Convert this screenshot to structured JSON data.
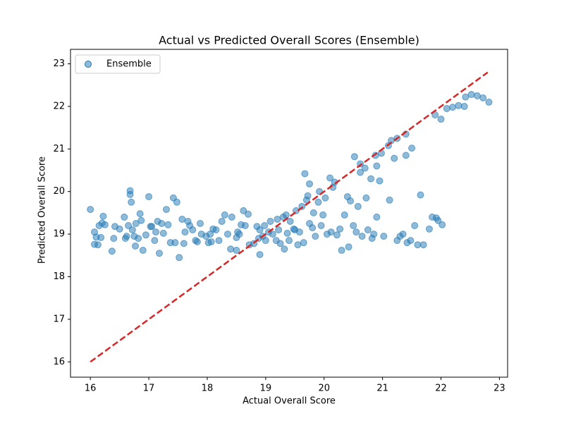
{
  "chart_data": {
    "type": "scatter",
    "title": "Actual vs Predicted Overall Scores (Ensemble)",
    "x_label": "Actual Overall Score",
    "y_label": "Predicted Overall Score",
    "x": [
      16.0,
      16.07,
      16.07,
      16.1,
      16.13,
      16.15,
      16.18,
      16.2,
      16.22,
      16.25,
      16.37,
      16.4,
      16.42,
      16.5,
      16.58,
      16.6,
      16.62,
      16.65,
      16.68,
      16.68,
      16.7,
      16.72,
      16.75,
      16.77,
      16.78,
      16.82,
      16.85,
      16.87,
      16.9,
      16.95,
      17.0,
      17.03,
      17.05,
      17.1,
      17.12,
      17.15,
      17.18,
      17.22,
      17.25,
      17.3,
      17.33,
      17.37,
      17.42,
      17.45,
      17.48,
      17.52,
      17.57,
      17.6,
      17.62,
      17.67,
      17.7,
      17.75,
      17.8,
      17.83,
      17.88,
      17.9,
      17.98,
      18.02,
      18.05,
      18.07,
      18.1,
      18.15,
      18.2,
      18.25,
      18.3,
      18.35,
      18.4,
      18.42,
      18.5,
      18.5,
      18.52,
      18.55,
      18.58,
      18.62,
      18.65,
      18.7,
      18.72,
      18.8,
      18.85,
      18.88,
      18.9,
      18.9,
      18.95,
      18.98,
      19.0,
      19.05,
      19.08,
      19.12,
      19.18,
      19.2,
      19.22,
      19.25,
      19.3,
      19.32,
      19.35,
      19.37,
      19.4,
      19.42,
      19.48,
      19.5,
      19.52,
      19.55,
      19.58,
      19.62,
      19.65,
      19.67,
      19.7,
      19.72,
      19.75,
      19.75,
      19.8,
      19.82,
      19.85,
      19.9,
      19.92,
      19.95,
      19.98,
      20.02,
      20.05,
      20.1,
      20.12,
      20.15,
      20.18,
      20.22,
      20.27,
      20.3,
      20.35,
      20.4,
      20.42,
      20.45,
      20.5,
      20.52,
      20.55,
      20.58,
      20.62,
      20.62,
      20.65,
      20.7,
      20.72,
      20.75,
      20.8,
      20.82,
      20.85,
      20.88,
      20.9,
      20.9,
      20.95,
      20.98,
      21.02,
      21.1,
      21.12,
      21.15,
      21.2,
      21.25,
      21.25,
      21.3,
      21.35,
      21.4,
      21.4,
      21.42,
      21.48,
      21.5,
      21.55,
      21.6,
      21.65,
      21.7,
      21.8,
      21.85,
      21.9,
      21.92,
      21.95,
      22.0,
      22.02,
      22.1,
      22.2,
      22.3,
      22.4,
      22.42,
      22.52,
      22.62,
      22.72,
      22.82
    ],
    "series": [
      {
        "name": "Ensemble",
        "color": "#1f77b4",
        "values": [
          19.58,
          18.76,
          19.05,
          18.93,
          18.75,
          19.2,
          18.92,
          19.26,
          19.42,
          19.22,
          18.6,
          18.9,
          19.18,
          19.12,
          19.4,
          18.9,
          18.95,
          19.2,
          20.02,
          19.93,
          19.75,
          19.1,
          18.95,
          18.72,
          19.25,
          18.9,
          19.48,
          19.32,
          18.62,
          18.98,
          19.88,
          19.18,
          19.18,
          18.85,
          19.05,
          19.3,
          18.55,
          19.25,
          19.02,
          19.58,
          19.22,
          18.8,
          19.85,
          18.8,
          19.75,
          18.45,
          19.35,
          18.78,
          19.05,
          19.3,
          19.2,
          19.1,
          18.85,
          18.82,
          19.25,
          19.0,
          18.95,
          18.8,
          19.0,
          18.82,
          19.12,
          19.1,
          18.85,
          19.3,
          19.45,
          19.0,
          18.65,
          19.4,
          18.62,
          18.92,
          19.05,
          19.0,
          19.22,
          19.55,
          19.2,
          19.47,
          18.75,
          18.78,
          19.18,
          18.9,
          18.52,
          19.1,
          18.95,
          19.2,
          18.85,
          19.05,
          19.3,
          19.0,
          18.85,
          19.35,
          19.1,
          18.78,
          19.4,
          18.65,
          19.45,
          19.02,
          18.85,
          19.3,
          19.12,
          19.1,
          19.55,
          18.75,
          19.05,
          19.65,
          18.8,
          20.42,
          19.8,
          19.9,
          20.18,
          19.25,
          19.15,
          19.5,
          18.95,
          19.75,
          20.0,
          19.2,
          19.45,
          19.85,
          19.0,
          20.32,
          19.05,
          20.1,
          20.22,
          18.98,
          19.12,
          18.62,
          19.45,
          19.88,
          18.7,
          19.78,
          19.2,
          20.82,
          19.05,
          19.65,
          20.65,
          20.45,
          18.95,
          20.55,
          19.85,
          19.1,
          20.3,
          18.9,
          19.0,
          20.85,
          20.6,
          19.4,
          20.25,
          20.9,
          18.95,
          21.08,
          19.8,
          21.2,
          20.78,
          21.25,
          18.85,
          18.95,
          19.0,
          21.35,
          20.85,
          18.8,
          18.85,
          21.02,
          19.2,
          18.75,
          19.92,
          18.75,
          19.12,
          19.4,
          21.8,
          19.38,
          19.32,
          21.7,
          19.22,
          21.95,
          21.98,
          22.02,
          22.0,
          22.22,
          22.28,
          22.25,
          22.2,
          22.1
        ]
      }
    ],
    "reference_line": {
      "x": [
        16,
        22.8
      ],
      "y": [
        16,
        22.8
      ],
      "color": "#d62728",
      "style": "dashed"
    },
    "xlim": [
      15.66,
      23.14
    ],
    "ylim": [
      15.64,
      23.34
    ],
    "xticks": [
      16,
      17,
      18,
      19,
      20,
      21,
      22,
      23
    ],
    "yticks": [
      16,
      17,
      18,
      19,
      20,
      21,
      22,
      23
    ],
    "grid": false,
    "legend": "upper-left"
  }
}
